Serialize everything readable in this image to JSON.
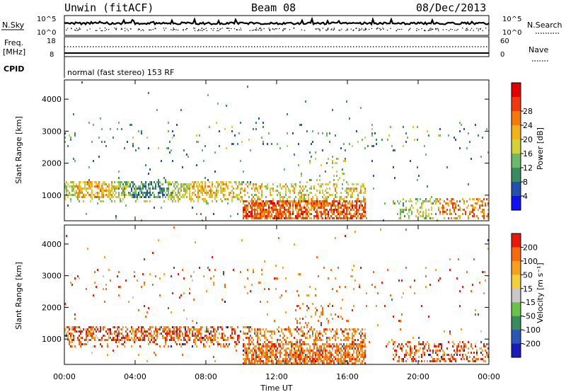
{
  "header": {
    "radar": "Unwin (fitACF)",
    "beam": "Beam 08",
    "date": "08/Dec/2013"
  },
  "noise_panel": {
    "left_label": "N.Sky",
    "right_label": "N.Search",
    "y_ticks": [
      "10^5",
      "10^0"
    ]
  },
  "freq_panel": {
    "left_label_line1": "Freq.",
    "left_label_line2": "[MHz]",
    "right_label": "Nave",
    "left_ticks": [
      "18",
      "8"
    ],
    "right_ticks": [
      "60",
      "0"
    ]
  },
  "cpid_panel": {
    "label": "CPID",
    "text": "normal (fast stereo) 153 RF"
  },
  "colors": {
    "power_scale": [
      "#1010f0",
      "#2550b0",
      "#3b8a62",
      "#6db86b",
      "#d2d23c",
      "#f2b21a",
      "#f57a0e",
      "#ee3a0c",
      "#e00000"
    ],
    "velocity_scale": [
      "#1a1ab8",
      "#2d55b8",
      "#3a8a5e",
      "#6ac24a",
      "#c8c8c8",
      "#f0d040",
      "#f5a020",
      "#f56a10",
      "#e61a0a"
    ]
  },
  "chart_data": [
    {
      "type": "heatmap",
      "name": "power",
      "ylabel": "Slant Range [km]",
      "y_ticks": [
        1000,
        2000,
        3000,
        4000
      ],
      "ylim": [
        200,
        4600
      ],
      "x_ticks": [
        "00:00",
        "04:00",
        "08:00",
        "12:00",
        "16:00",
        "20:00",
        "00:00"
      ],
      "xlim_hours": [
        0,
        24
      ],
      "colorbar": {
        "label": "Power [dB]",
        "ticks": [
          "4",
          "8",
          "12",
          "16",
          "20",
          "24",
          "28"
        ],
        "range": [
          0,
          30
        ]
      }
    },
    {
      "type": "heatmap",
      "name": "velocity",
      "ylabel": "Slant Range [km]",
      "y_ticks": [
        1000,
        2000,
        3000,
        4000
      ],
      "ylim": [
        200,
        4600
      ],
      "x_ticks": [
        "00:00",
        "04:00",
        "08:00",
        "12:00",
        "16:00",
        "20:00",
        "00:00"
      ],
      "xlabel": "Time UT",
      "xlim_hours": [
        0,
        24
      ],
      "colorbar": {
        "label": "Velocity [m s⁻¹]",
        "ticks": [
          "200",
          "100",
          "50",
          "15",
          "-15",
          "-50",
          "-100",
          "-200"
        ]
      }
    }
  ]
}
